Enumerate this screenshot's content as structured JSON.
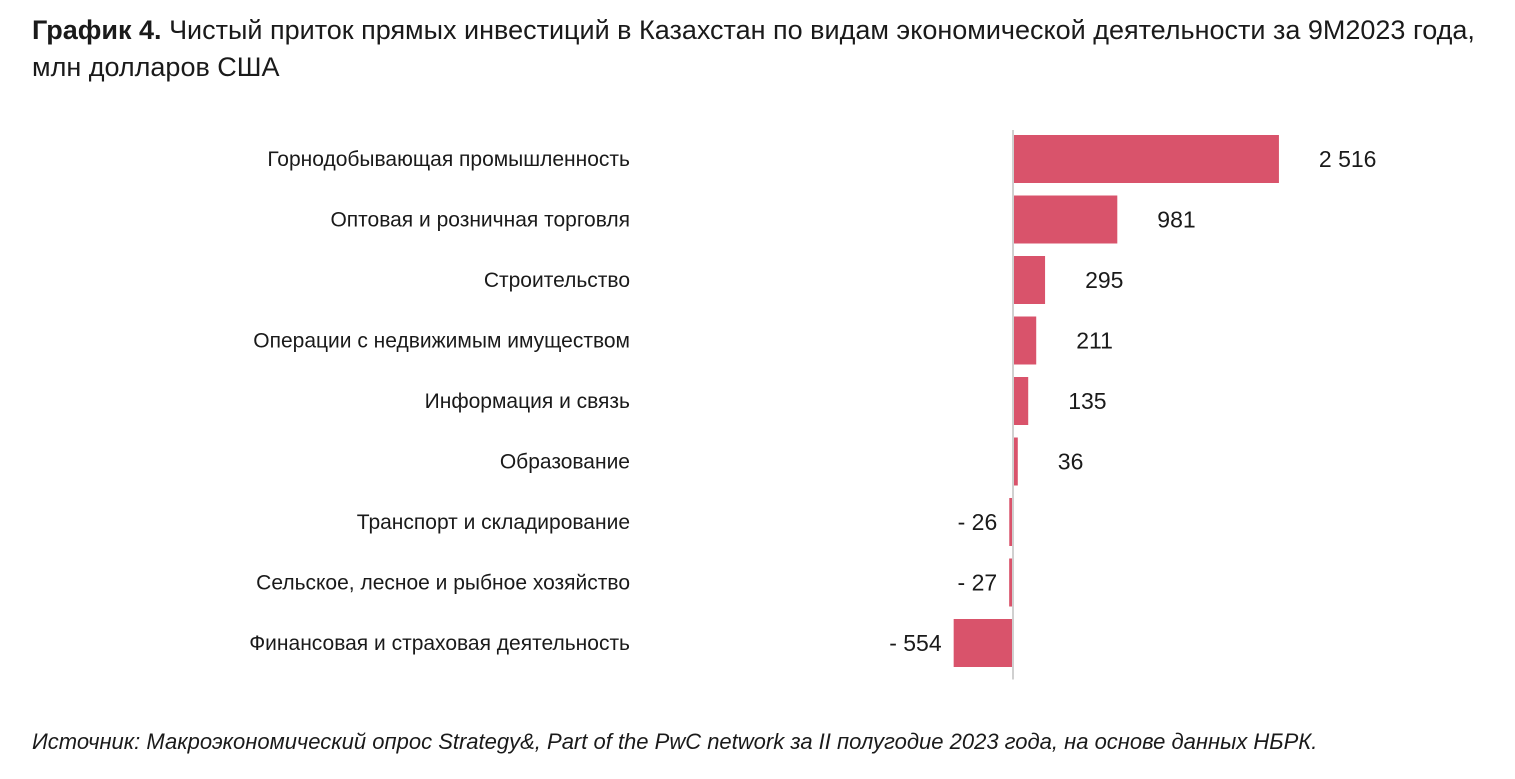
{
  "title": {
    "prefix": "График 4.",
    "text": "Чистый приток прямых инвестиций в Казахстан по видам экономической деятельности за 9М2023 года, млн долларов США"
  },
  "chart_data": {
    "type": "bar",
    "orientation": "horizontal",
    "title": "Чистый приток прямых инвестиций в Казахстан по видам экономической деятельности за 9М2023 года, млн долларов США",
    "categories": [
      "Горнодобывающая промышленность",
      "Оптовая и розничная торговля",
      "Строительство",
      "Операции с недвижимым имуществом",
      "Информация и связь",
      "Образование",
      "Транспорт и складирование",
      "Сельское, лесное и рыбное хозяйство",
      "Финансовая и страховая деятельность"
    ],
    "values": [
      2516,
      981,
      295,
      211,
      135,
      36,
      -26,
      -27,
      -554
    ],
    "labels": [
      "2 516",
      "981",
      "295",
      "211",
      "135",
      "36",
      "- 26",
      "- 27",
      "- 554"
    ],
    "units": "млн долларов США",
    "bar_color": "#d9536b",
    "axis_color": "#d0d0d0"
  },
  "source": "Источник: Макроэкономический опрос Strategy&, Part of the PwC network за II полугодие 2023 года, на основе данных НБРК."
}
